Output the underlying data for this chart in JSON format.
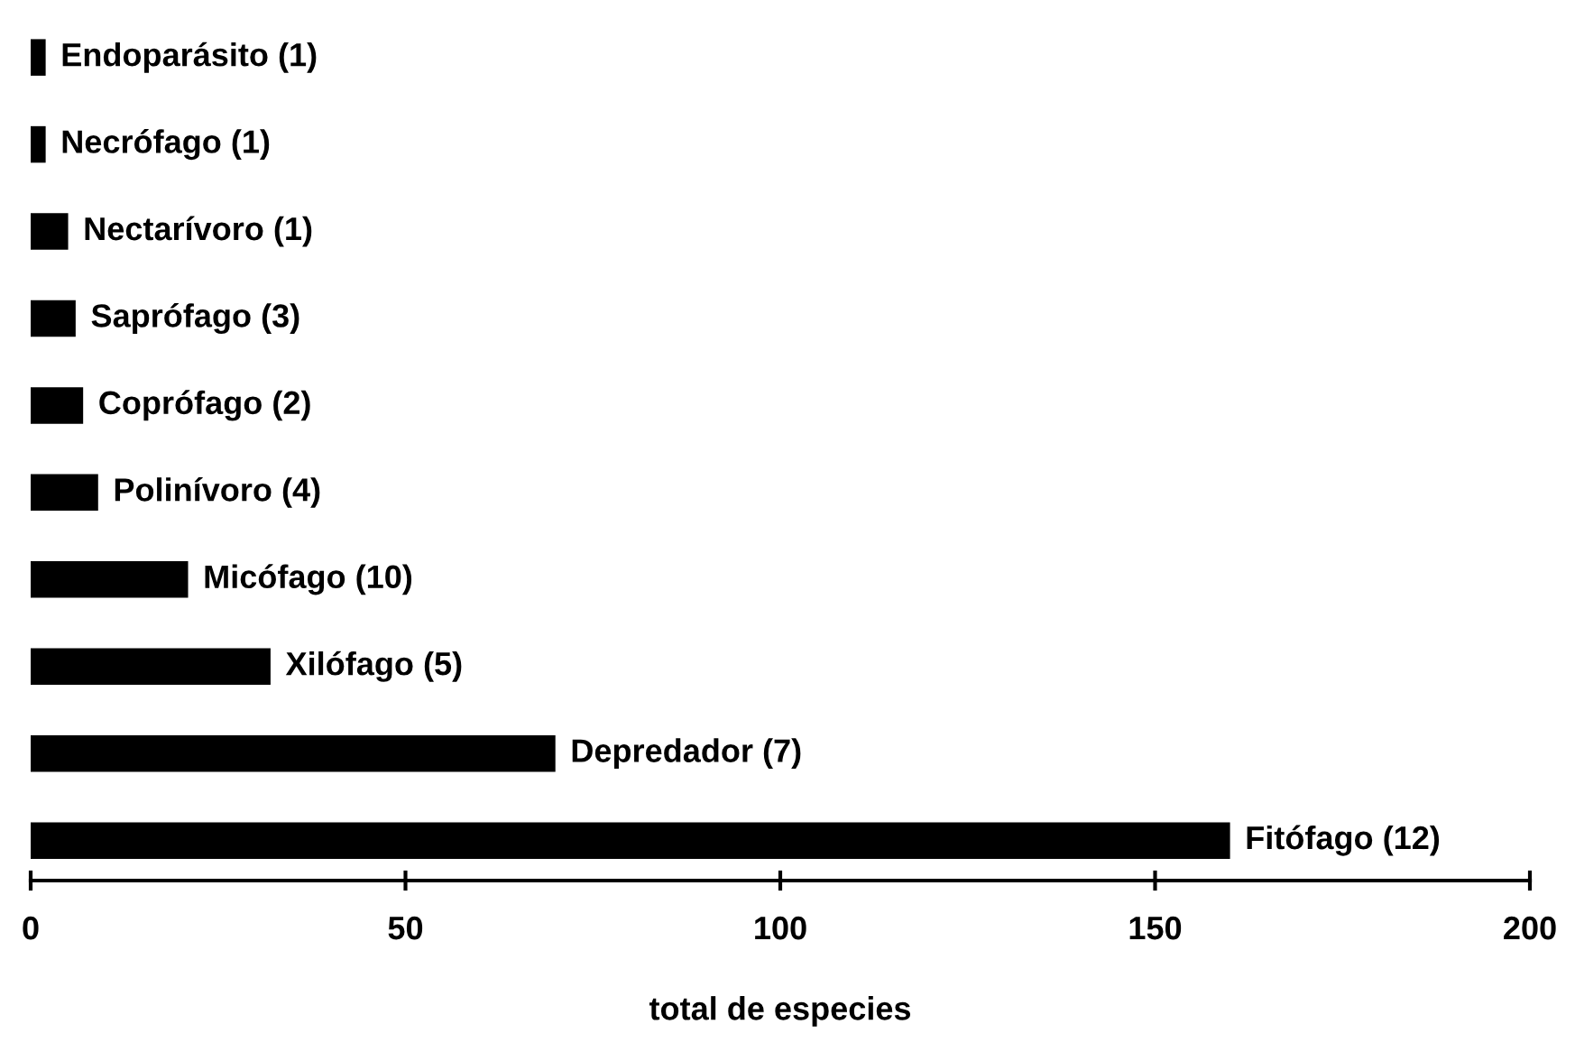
{
  "chart_data": {
    "type": "bar",
    "orientation": "horizontal",
    "xlabel": "total de especies",
    "categories": [
      "Endoparásito (1)",
      "Necrófago (1)",
      "Nectarívoro (1)",
      "Saprófago (3)",
      "Coprófago (2)",
      "Polinívoro (4)",
      "Micófago (10)",
      "Xilófago (5)",
      "Depredador (7)",
      "Fitófago (12)"
    ],
    "values": [
      2,
      2,
      5,
      6,
      7,
      9,
      21,
      32,
      70,
      160
    ],
    "color": "#000000",
    "xlim": [
      0,
      200
    ],
    "xticks": [
      0,
      50,
      100,
      150,
      200
    ],
    "grid": false
  }
}
